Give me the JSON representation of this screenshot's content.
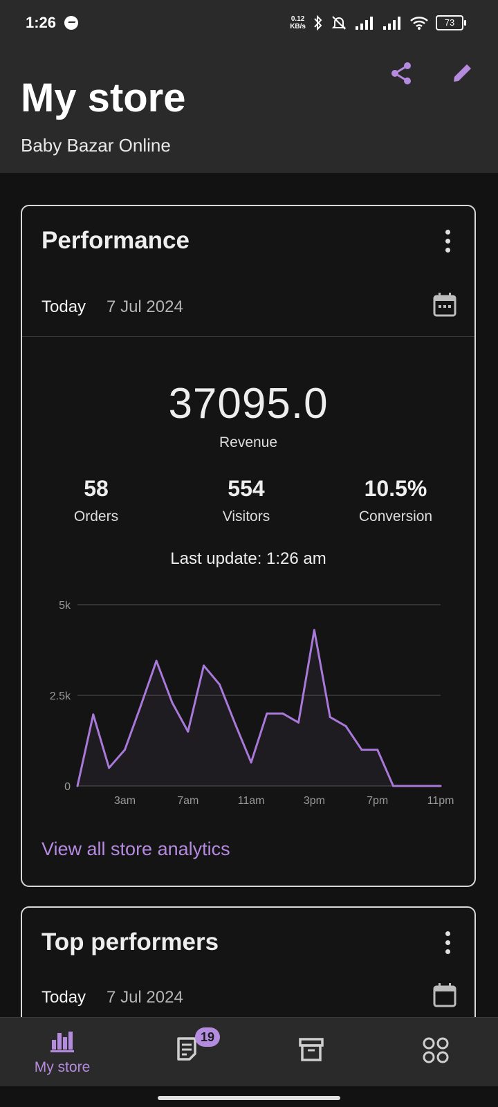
{
  "status_bar": {
    "time": "1:26",
    "speed_top": "0.12",
    "speed_bottom": "KB/s",
    "battery": "73"
  },
  "header": {
    "title": "My store",
    "store_name": "Baby Bazar Online"
  },
  "performance": {
    "title": "Performance",
    "date_label": "Today",
    "date_value": "7 Jul 2024",
    "revenue_value": "37095.0",
    "revenue_label": "Revenue",
    "stats": [
      {
        "value": "58",
        "label": "Orders"
      },
      {
        "value": "554",
        "label": "Visitors"
      },
      {
        "value": "10.5%",
        "label": "Conversion"
      }
    ],
    "last_update": "Last update: 1:26 am",
    "view_all": "View all store analytics"
  },
  "top_performers": {
    "title": "Top performers",
    "date_label": "Today",
    "date_value": "7 Jul 2024"
  },
  "nav": {
    "items": [
      {
        "label": "My store",
        "icon": "bar-chart-icon"
      },
      {
        "label": "",
        "icon": "orders-icon",
        "badge": "19"
      },
      {
        "label": "",
        "icon": "products-box-icon"
      },
      {
        "label": "",
        "icon": "menu-grid-icon"
      }
    ]
  },
  "colors": {
    "accent": "#b58be0",
    "line": "#a879d8",
    "background": "#121212",
    "header": "#2a2a2a"
  },
  "chart_data": {
    "type": "line",
    "x": [
      0,
      1,
      2,
      3,
      4,
      5,
      6,
      7,
      8,
      9,
      10,
      11,
      12,
      13,
      14,
      15,
      16,
      17,
      18,
      19,
      20,
      21,
      22,
      23
    ],
    "xticks": [
      3,
      7,
      11,
      15,
      19,
      23
    ],
    "xtick_labels": [
      "3am",
      "7am",
      "11am",
      "3pm",
      "7pm",
      "11pm"
    ],
    "values": [
      0,
      1970,
      500,
      1000,
      2200,
      3450,
      2300,
      1500,
      3320,
      2800,
      1700,
      650,
      2000,
      2000,
      1750,
      4300,
      1900,
      1650,
      1000,
      1000,
      0,
      0,
      0,
      0
    ],
    "yticks": [
      0,
      2500,
      5000
    ],
    "ytick_labels": [
      "0",
      "2.5k",
      "5k"
    ],
    "ylim": [
      0,
      5000
    ],
    "grid": true,
    "title": "",
    "xlabel": "",
    "ylabel": ""
  }
}
